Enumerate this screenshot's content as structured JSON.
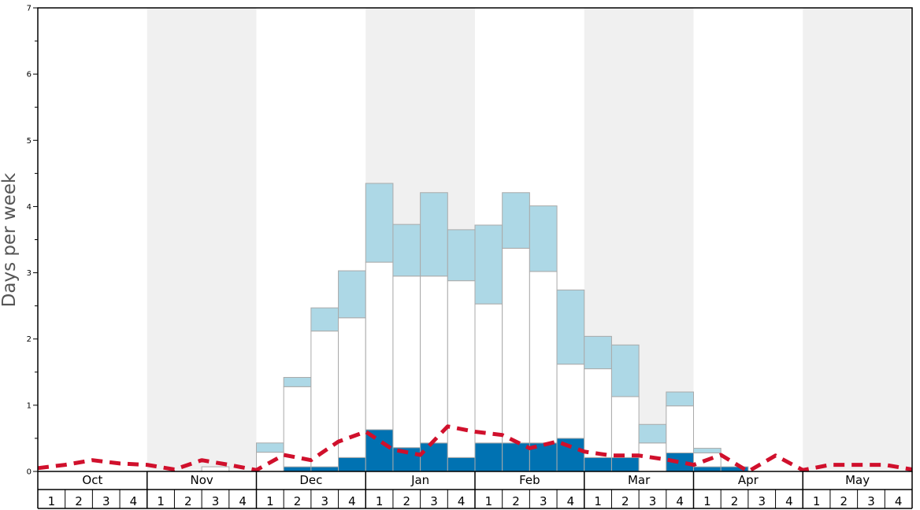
{
  "chart_data": {
    "type": "bar",
    "xlabel": "",
    "ylabel": "Days per week",
    "ylim": [
      0,
      7
    ],
    "yticks": [
      "0",
      "1",
      "2",
      "3",
      "4",
      "5",
      "6",
      "7"
    ],
    "months": [
      "Oct",
      "Nov",
      "Dec",
      "Jan",
      "Feb",
      "Mar",
      "Apr",
      "May"
    ],
    "week_labels": [
      "1",
      "2",
      "3",
      "4"
    ],
    "stacked": true,
    "series": [
      {
        "key": "dark",
        "color": "#0072b2",
        "values": [
          0,
          0,
          0,
          0,
          0,
          0,
          0,
          0,
          0,
          0.07,
          0.07,
          0.21,
          0.63,
          0.36,
          0.43,
          0.21,
          0.43,
          0.43,
          0.43,
          0.5,
          0.21,
          0.21,
          0,
          0.28,
          0.07,
          0.07,
          0,
          0,
          0,
          0,
          0,
          0
        ]
      },
      {
        "key": "white",
        "color": "#ffffff",
        "values": [
          0,
          0,
          0,
          0,
          0,
          0,
          0.07,
          0,
          0.29,
          1.21,
          2.05,
          2.11,
          2.53,
          2.59,
          2.52,
          2.67,
          2.1,
          2.94,
          2.59,
          1.12,
          1.34,
          0.92,
          0.43,
          0.71,
          0.21,
          0,
          0,
          0,
          0,
          0,
          0,
          0
        ]
      },
      {
        "key": "light",
        "color": "#add8e6",
        "values": [
          0,
          0,
          0,
          0,
          0,
          0,
          0,
          0,
          0.14,
          0.14,
          0.35,
          0.71,
          1.19,
          0.78,
          1.26,
          0.77,
          1.19,
          0.84,
          0.99,
          1.12,
          0.49,
          0.78,
          0.28,
          0.21,
          0.07,
          0,
          0,
          0,
          0,
          0,
          0,
          0
        ]
      }
    ],
    "average_line": {
      "color": "#d0102c",
      "values": [
        0.05,
        0.1,
        0.17,
        0.12,
        0.1,
        0.03,
        0.17,
        0.1,
        0.02,
        0.25,
        0.17,
        0.45,
        0.6,
        0.33,
        0.25,
        0.68,
        0.6,
        0.55,
        0.35,
        0.45,
        0.3,
        0.24,
        0.24,
        0.18,
        0.1,
        0.25,
        0,
        0.24,
        0.02,
        0.1,
        0.1,
        0.1,
        0.03
      ]
    },
    "grid": false,
    "colors": {
      "band": "#f0f0f0",
      "bar_stroke": "#aaaaaa",
      "axis": "#000000"
    }
  }
}
